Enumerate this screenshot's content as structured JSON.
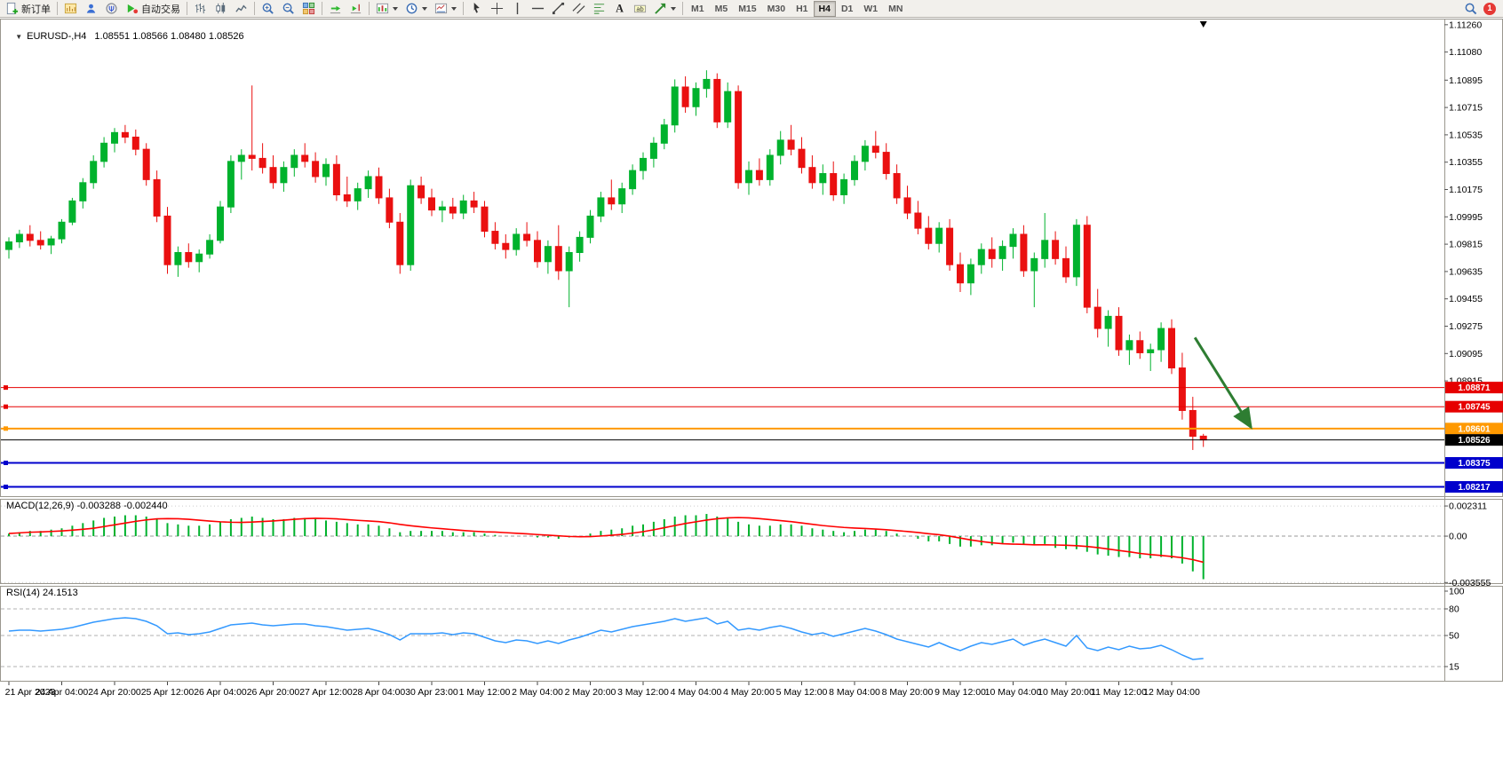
{
  "toolbar": {
    "new_order_label": "新订单",
    "auto_trading_label": "自动交易",
    "periods": [
      "M1",
      "M5",
      "M15",
      "M30",
      "H1",
      "H4",
      "D1",
      "W1",
      "MN"
    ],
    "active_period": "H4",
    "notification_badge": "1"
  },
  "colors": {
    "bull": "#00b22d",
    "bear": "#ea1010",
    "macd_bar": "#00b22d",
    "macd_signal": "#ff0000",
    "rsi_line": "#3399ff",
    "panel_border": "#9a978e",
    "axis_text": "#000000",
    "arrow": "#2e7d32",
    "current_price": "#000000"
  },
  "chart_data": [
    {
      "type": "candlestick",
      "symbol": "EURUSD-",
      "timeframe": "H4",
      "collapse_glyph": "▼",
      "symbol_label": "EURUSD-,H4",
      "ohlc_text": "1.08551 1.08566 1.08480 1.08526",
      "open": "1.08551",
      "high": "1.08566",
      "low": "1.08480",
      "close": "1.08526",
      "ylim": [
        1.0815,
        1.113
      ],
      "y_ticks": [
        "1.11260",
        "1.11080",
        "1.10895",
        "1.10715",
        "1.10535",
        "1.10355",
        "1.10175",
        "1.09995",
        "1.09815",
        "1.09635",
        "1.09455",
        "1.09275",
        "1.09095",
        "1.08915"
      ],
      "hlines": [
        {
          "value": 1.08871,
          "label": "1.08871",
          "color": "#e60000",
          "width": 1
        },
        {
          "value": 1.08745,
          "label": "1.08745",
          "color": "#e60000",
          "width": 1
        },
        {
          "value": 1.08601,
          "label": "1.08601",
          "color": "#ff9900",
          "width": 2
        },
        {
          "value": 1.08375,
          "label": "1.08375",
          "color": "#0000cc",
          "width": 2
        },
        {
          "value": 1.08217,
          "label": "1.08217",
          "color": "#0000cc",
          "width": 2
        }
      ],
      "current_price": {
        "value": 1.08526,
        "label": "1.08526"
      },
      "arrow": {
        "from_bar": 112.2,
        "from_price": 1.092,
        "to_bar": 117.5,
        "to_price": 1.0861
      },
      "x_label_step": 5,
      "x_labels": [
        "21 Apr 2023",
        "24 Apr 04:00",
        "24 Apr 20:00",
        "25 Apr 12:00",
        "26 Apr 04:00",
        "26 Apr 20:00",
        "27 Apr 12:00",
        "28 Apr 04:00",
        "30 Apr 23:00",
        "1 May 12:00",
        "2 May 04:00",
        "2 May 20:00",
        "3 May 12:00",
        "4 May 04:00",
        "4 May 20:00",
        "5 May 12:00",
        "8 May 04:00",
        "8 May 20:00",
        "9 May 12:00",
        "10 May 04:00",
        "10 May 20:00",
        "11 May 12:00",
        "12 May 04:00"
      ],
      "candles": [
        [
          1.0978,
          1.0986,
          1.0972,
          1.0983
        ],
        [
          1.0983,
          1.0991,
          1.0979,
          1.0988
        ],
        [
          1.0988,
          1.0994,
          1.098,
          1.0984
        ],
        [
          1.0984,
          1.099,
          1.0978,
          1.0981
        ],
        [
          1.0981,
          1.0987,
          1.0975,
          1.0985
        ],
        [
          1.0985,
          1.0998,
          1.0982,
          1.0996
        ],
        [
          1.0996,
          1.1012,
          1.0994,
          1.101
        ],
        [
          1.101,
          1.1025,
          1.1005,
          1.1022
        ],
        [
          1.1022,
          1.104,
          1.1018,
          1.1036
        ],
        [
          1.1036,
          1.1052,
          1.1032,
          1.1048
        ],
        [
          1.1048,
          1.1058,
          1.1042,
          1.1055
        ],
        [
          1.1055,
          1.106,
          1.1048,
          1.1052
        ],
        [
          1.1052,
          1.1057,
          1.104,
          1.1044
        ],
        [
          1.1044,
          1.1048,
          1.102,
          1.1024
        ],
        [
          1.1024,
          1.103,
          1.0996,
          1.1
        ],
        [
          1.1,
          1.1006,
          1.0962,
          1.0968
        ],
        [
          1.0968,
          1.098,
          1.096,
          1.0976
        ],
        [
          1.0976,
          1.0982,
          1.0966,
          1.097
        ],
        [
          1.097,
          1.0978,
          1.0963,
          1.0975
        ],
        [
          1.0975,
          1.0988,
          1.0972,
          1.0984
        ],
        [
          1.0984,
          1.101,
          1.0982,
          1.1006
        ],
        [
          1.1006,
          1.104,
          1.1002,
          1.1036
        ],
        [
          1.1036,
          1.1044,
          1.1024,
          1.104
        ],
        [
          1.104,
          1.1086,
          1.103,
          1.1038
        ],
        [
          1.1038,
          1.1048,
          1.1028,
          1.1032
        ],
        [
          1.1032,
          1.104,
          1.1018,
          1.1022
        ],
        [
          1.1022,
          1.1036,
          1.1016,
          1.1032
        ],
        [
          1.1032,
          1.1044,
          1.1026,
          1.104
        ],
        [
          1.104,
          1.1048,
          1.1032,
          1.1036
        ],
        [
          1.1036,
          1.1042,
          1.1022,
          1.1026
        ],
        [
          1.1026,
          1.1038,
          1.102,
          1.1034
        ],
        [
          1.1034,
          1.104,
          1.101,
          1.1014
        ],
        [
          1.1014,
          1.1026,
          1.1006,
          1.101
        ],
        [
          1.101,
          1.1022,
          1.1004,
          1.1018
        ],
        [
          1.1018,
          1.103,
          1.1012,
          1.1026
        ],
        [
          1.1026,
          1.1032,
          1.1008,
          1.1012
        ],
        [
          1.1012,
          1.1018,
          1.0992,
          1.0996
        ],
        [
          1.0996,
          1.1002,
          1.0962,
          1.0968
        ],
        [
          1.0968,
          1.1024,
          1.0964,
          1.102
        ],
        [
          1.102,
          1.1026,
          1.1008,
          1.1012
        ],
        [
          1.1012,
          1.1018,
          1.1,
          1.1004
        ],
        [
          1.1004,
          1.101,
          1.0996,
          1.1006
        ],
        [
          1.1006,
          1.1012,
          1.0998,
          1.1002
        ],
        [
          1.1002,
          1.1014,
          1.0998,
          1.101
        ],
        [
          1.101,
          1.1016,
          1.1002,
          1.1006
        ],
        [
          1.1006,
          1.101,
          1.0986,
          1.099
        ],
        [
          1.099,
          1.0996,
          1.0978,
          1.0982
        ],
        [
          1.0982,
          1.0988,
          1.0972,
          1.0978
        ],
        [
          1.0978,
          1.0992,
          1.0974,
          1.0988
        ],
        [
          1.0988,
          1.0996,
          1.098,
          1.0984
        ],
        [
          1.0984,
          1.099,
          1.0966,
          1.097
        ],
        [
          1.097,
          1.0984,
          1.0962,
          1.098
        ],
        [
          1.098,
          1.0994,
          1.0958,
          1.0964
        ],
        [
          1.0964,
          1.098,
          1.094,
          1.0976
        ],
        [
          1.0976,
          1.099,
          1.097,
          1.0986
        ],
        [
          1.0986,
          1.1004,
          1.0982,
          1.1
        ],
        [
          1.1,
          1.1016,
          1.0996,
          1.1012
        ],
        [
          1.1012,
          1.1024,
          1.1004,
          1.1008
        ],
        [
          1.1008,
          1.1022,
          1.1002,
          1.1018
        ],
        [
          1.1018,
          1.1034,
          1.1014,
          1.103
        ],
        [
          1.103,
          1.1042,
          1.1024,
          1.1038
        ],
        [
          1.1038,
          1.1052,
          1.1032,
          1.1048
        ],
        [
          1.1048,
          1.1064,
          1.1044,
          1.106
        ],
        [
          1.106,
          1.109,
          1.1055,
          1.1085
        ],
        [
          1.1085,
          1.1092,
          1.1068,
          1.1072
        ],
        [
          1.1072,
          1.1088,
          1.1066,
          1.1084
        ],
        [
          1.1084,
          1.1096,
          1.1078,
          1.109
        ],
        [
          1.109,
          1.1094,
          1.1058,
          1.1062
        ],
        [
          1.1062,
          1.1088,
          1.1058,
          1.1082
        ],
        [
          1.1082,
          1.1086,
          1.1018,
          1.1022
        ],
        [
          1.1022,
          1.1036,
          1.1014,
          1.103
        ],
        [
          1.103,
          1.1038,
          1.102,
          1.1024
        ],
        [
          1.1024,
          1.1044,
          1.102,
          1.104
        ],
        [
          1.104,
          1.1056,
          1.1034,
          1.105
        ],
        [
          1.105,
          1.106,
          1.104,
          1.1044
        ],
        [
          1.1044,
          1.1052,
          1.1028,
          1.1032
        ],
        [
          1.1032,
          1.104,
          1.1018,
          1.1022
        ],
        [
          1.1022,
          1.1034,
          1.1014,
          1.1028
        ],
        [
          1.1028,
          1.1036,
          1.101,
          1.1014
        ],
        [
          1.1014,
          1.1028,
          1.1008,
          1.1024
        ],
        [
          1.1024,
          1.104,
          1.102,
          1.1036
        ],
        [
          1.1036,
          1.105,
          1.103,
          1.1046
        ],
        [
          1.1046,
          1.1056,
          1.1038,
          1.1042
        ],
        [
          1.1042,
          1.1048,
          1.1024,
          1.1028
        ],
        [
          1.1028,
          1.1034,
          1.1008,
          1.1012
        ],
        [
          1.1012,
          1.102,
          1.0998,
          1.1002
        ],
        [
          1.1002,
          1.101,
          1.0988,
          1.0992
        ],
        [
          1.0992,
          1.1,
          1.0978,
          1.0982
        ],
        [
          1.0982,
          1.0996,
          1.0976,
          1.0992
        ],
        [
          1.0992,
          1.0998,
          1.0964,
          1.0968
        ],
        [
          1.0968,
          1.0976,
          1.095,
          1.0956
        ],
        [
          1.0956,
          1.0972,
          1.0948,
          1.0968
        ],
        [
          1.0968,
          1.0982,
          1.0962,
          1.0978
        ],
        [
          1.0978,
          1.0986,
          1.0966,
          1.0972
        ],
        [
          1.0972,
          1.0984,
          1.0964,
          1.098
        ],
        [
          1.098,
          1.0992,
          1.0972,
          1.0988
        ],
        [
          1.0988,
          1.0994,
          1.096,
          1.0964
        ],
        [
          1.0964,
          1.0976,
          1.094,
          1.0972
        ],
        [
          1.0972,
          1.1002,
          1.0966,
          1.0984
        ],
        [
          1.0984,
          1.099,
          1.0968,
          1.0972
        ],
        [
          1.0972,
          1.098,
          1.0956,
          1.096
        ],
        [
          1.096,
          1.0998,
          1.0954,
          1.0994
        ],
        [
          1.0994,
          1.1,
          1.0936,
          1.094
        ],
        [
          1.094,
          1.0952,
          1.092,
          1.0926
        ],
        [
          1.0926,
          1.0938,
          1.0914,
          1.0934
        ],
        [
          1.0934,
          1.094,
          1.0908,
          1.0912
        ],
        [
          1.0912,
          1.0922,
          1.0902,
          1.0918
        ],
        [
          1.0918,
          1.0924,
          1.0906,
          1.091
        ],
        [
          1.091,
          1.0916,
          1.0898,
          1.0912
        ],
        [
          1.0912,
          1.093,
          1.0904,
          1.0926
        ],
        [
          1.0926,
          1.0932,
          1.0896,
          1.09
        ],
        [
          1.09,
          1.091,
          1.0866,
          1.0872
        ],
        [
          1.0872,
          1.0881,
          1.0846,
          1.0855
        ],
        [
          1.08551,
          1.08566,
          1.0848,
          1.08526
        ]
      ]
    },
    {
      "type": "macd-histogram",
      "label": "MACD(12,26,9) -0.003288 -0.002440",
      "params": "12,26,9",
      "value_main": "-0.003288",
      "value_signal": "-0.002440",
      "ylim": [
        -0.00367,
        0.00286
      ],
      "y_ticks": [
        {
          "label": "0.002311",
          "value": 0.002311
        },
        {
          "label": "0.00",
          "value": 0
        },
        {
          "label": "-0.003555",
          "value": -0.003555
        }
      ],
      "signal_period": 9,
      "values": [
        0.0002,
        0.0003,
        0.0004,
        0.0004,
        0.0005,
        0.0006,
        0.0008,
        0.001,
        0.0012,
        0.0014,
        0.0015,
        0.0016,
        0.0016,
        0.0015,
        0.0013,
        0.001,
        0.0009,
        0.0008,
        0.0008,
        0.0009,
        0.0011,
        0.0013,
        0.0014,
        0.0015,
        0.0014,
        0.0013,
        0.0013,
        0.0014,
        0.0014,
        0.0013,
        0.0012,
        0.0011,
        0.001,
        0.0009,
        0.0009,
        0.0008,
        0.0006,
        0.0003,
        0.0004,
        0.0004,
        0.0004,
        0.0004,
        0.0003,
        0.0003,
        0.0003,
        0.0002,
        0.0001,
        0,
        0,
        0,
        -0.0001,
        -0.0001,
        -0.0002,
        -0.0001,
        0,
        0.0002,
        0.0004,
        0.0005,
        0.0006,
        0.0008,
        0.0009,
        0.0011,
        0.0013,
        0.0015,
        0.0016,
        0.0016,
        0.0017,
        0.0015,
        0.0014,
        0.0011,
        0.0009,
        0.0008,
        0.0008,
        0.0009,
        0.0009,
        0.0008,
        0.0006,
        0.0005,
        0.0004,
        0.0003,
        0.0004,
        0.0005,
        0.0005,
        0.0004,
        0.0002,
        0,
        -0.0002,
        -0.0004,
        -0.0004,
        -0.0006,
        -0.0008,
        -0.0008,
        -0.0007,
        -0.0007,
        -0.0006,
        -0.0005,
        -0.0006,
        -0.0007,
        -0.0006,
        -0.0009,
        -0.001,
        -0.001,
        -0.0012,
        -0.0014,
        -0.0015,
        -0.0016,
        -0.0016,
        -0.0017,
        -0.0017,
        -0.0016,
        -0.0017,
        -0.0021,
        -0.0027,
        -0.0033
      ]
    },
    {
      "type": "rsi-line",
      "label": "RSI(14) 24.1513",
      "params": "14",
      "value": "24.1513",
      "ylim": [
        0,
        100
      ],
      "levels": [
        80,
        50,
        15
      ],
      "y_ticks": [
        {
          "label": "100",
          "value": 100
        },
        {
          "label": "80",
          "value": 80
        },
        {
          "label": "50",
          "value": 50
        },
        {
          "label": "15",
          "value": 15
        }
      ],
      "values": [
        55,
        56,
        56,
        55,
        56,
        57,
        59,
        62,
        65,
        67,
        69,
        70,
        69,
        66,
        61,
        52,
        53,
        51,
        52,
        54,
        58,
        62,
        63,
        64,
        62,
        61,
        62,
        63,
        63,
        61,
        60,
        58,
        56,
        57,
        58,
        55,
        51,
        45,
        52,
        52,
        52,
        53,
        51,
        53,
        52,
        48,
        44,
        42,
        45,
        44,
        41,
        44,
        41,
        45,
        48,
        52,
        56,
        54,
        57,
        60,
        62,
        64,
        66,
        69,
        66,
        68,
        70,
        63,
        66,
        56,
        58,
        56,
        59,
        61,
        58,
        54,
        51,
        53,
        49,
        52,
        55,
        58,
        55,
        51,
        46,
        43,
        40,
        37,
        42,
        37,
        33,
        38,
        42,
        40,
        43,
        46,
        39,
        43,
        46,
        42,
        38,
        50,
        36,
        33,
        37,
        34,
        38,
        35,
        36,
        39,
        34,
        28,
        23,
        24.15
      ]
    }
  ]
}
